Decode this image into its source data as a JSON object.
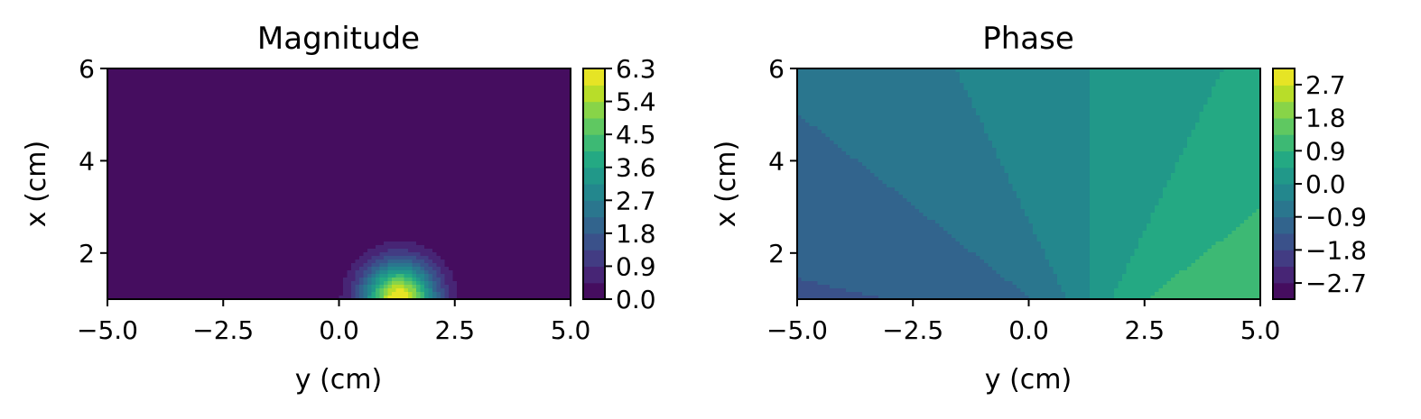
{
  "chart_data": [
    {
      "type": "heatmap",
      "subtype": "filled-contour",
      "title": "Magnitude",
      "xlabel": "y (cm)",
      "ylabel": "x (cm)",
      "xlim": [
        -5.0,
        5.0
      ],
      "ylim": [
        1.0,
        6.0
      ],
      "xticks": [
        -5.0,
        -2.5,
        0.0,
        2.5,
        5.0
      ],
      "xtick_labels": [
        "−5.0",
        "−2.5",
        "0.0",
        "2.5",
        "5.0"
      ],
      "yticks": [
        2,
        4,
        6
      ],
      "ytick_labels": [
        "2",
        "4",
        "6"
      ],
      "colormap": "viridis",
      "field": {
        "kind": "peak",
        "center_y": 1.3,
        "peak_at_x": 1.0,
        "max_value": 6.3
      },
      "colorbar": {
        "range": [
          0.0,
          6.3
        ],
        "levels": 14,
        "ticks": [
          0.0,
          0.9,
          1.8,
          2.7,
          3.6,
          4.5,
          5.4,
          6.3
        ],
        "tick_labels": [
          "0.0",
          "0.9",
          "1.8",
          "2.7",
          "3.6",
          "4.5",
          "5.4",
          "6.3"
        ]
      },
      "grid": false
    },
    {
      "type": "heatmap",
      "subtype": "filled-contour",
      "title": "Phase",
      "xlabel": "y (cm)",
      "ylabel": "x (cm)",
      "xlim": [
        -5.0,
        5.0
      ],
      "ylim": [
        1.0,
        6.0
      ],
      "xticks": [
        -5.0,
        -2.5,
        0.0,
        2.5,
        5.0
      ],
      "xtick_labels": [
        "−5.0",
        "−2.5",
        "0.0",
        "2.5",
        "5.0"
      ],
      "yticks": [
        2,
        4,
        6
      ],
      "ytick_labels": [
        "2",
        "4",
        "6"
      ],
      "colormap": "viridis",
      "field": {
        "kind": "angle",
        "origin_y": 1.3,
        "origin_x": 0.0
      },
      "colorbar": {
        "range": [
          -3.14,
          3.14
        ],
        "levels": 14,
        "ticks": [
          -2.7,
          -1.8,
          -0.9,
          0.0,
          0.9,
          1.8,
          2.7
        ],
        "tick_labels": [
          "−2.7",
          "−1.8",
          "−0.9",
          "0.0",
          "0.9",
          "1.8",
          "2.7"
        ]
      },
      "grid": false
    }
  ]
}
